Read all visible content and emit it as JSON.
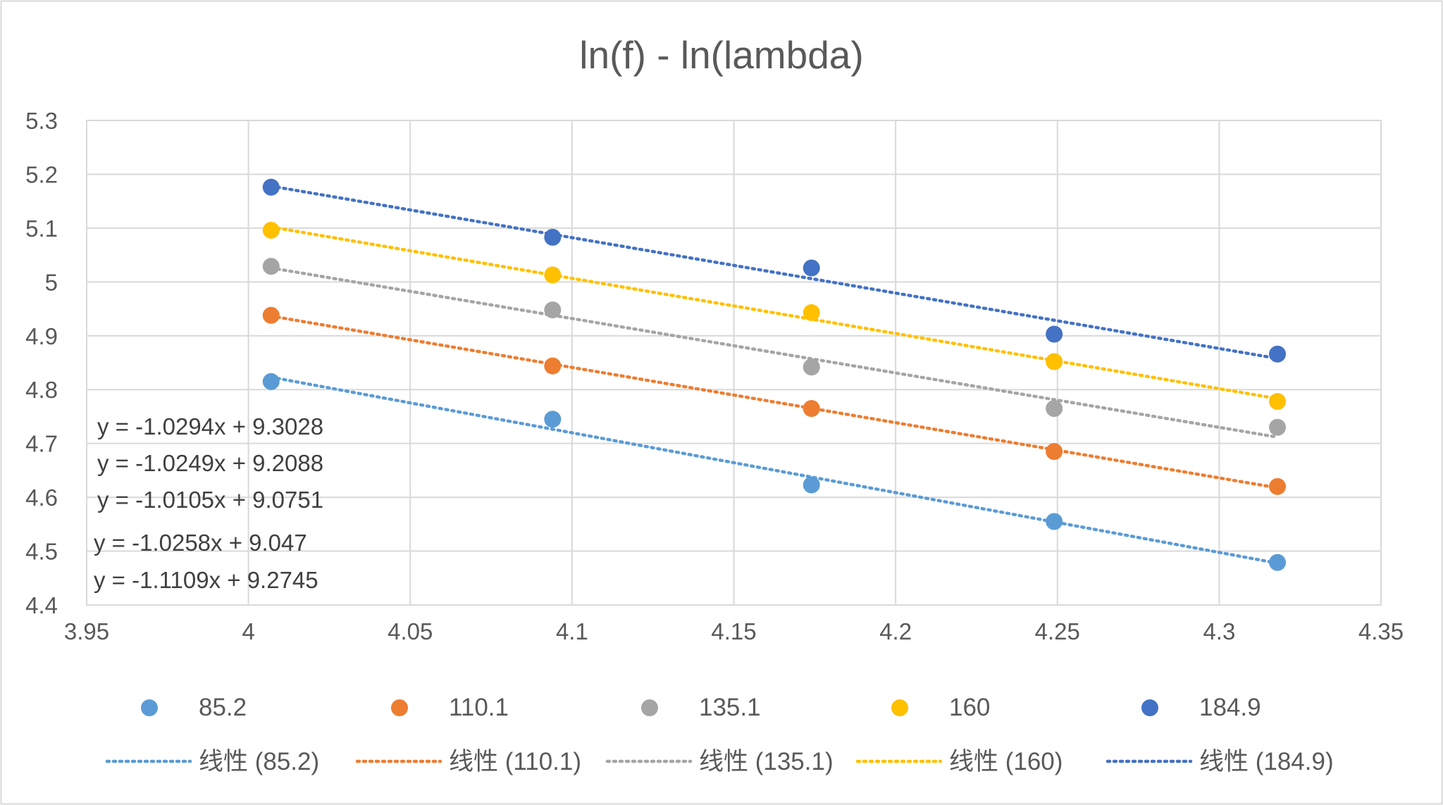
{
  "chart_data": {
    "type": "scatter",
    "title": "ln(f) - ln(lambda)",
    "xlabel": "",
    "ylabel": "",
    "xlim": [
      3.95,
      4.35
    ],
    "ylim": [
      4.4,
      5.3
    ],
    "x_ticks": [
      3.95,
      4,
      4.05,
      4.1,
      4.15,
      4.2,
      4.25,
      4.3,
      4.35
    ],
    "x_tick_labels": [
      "3.95",
      "4",
      "4.05",
      "4.1",
      "4.15",
      "4.2",
      "4.25",
      "4.3",
      "4.35"
    ],
    "y_ticks": [
      4.4,
      4.5,
      4.6,
      4.7,
      4.8,
      4.9,
      5,
      5.1,
      5.2,
      5.3
    ],
    "y_tick_labels": [
      "4.4",
      "4.5",
      "4.6",
      "4.7",
      "4.8",
      "4.9",
      "5",
      "5.1",
      "5.2",
      "5.3"
    ],
    "grid": true,
    "legend_position": "bottom",
    "x": [
      4.007,
      4.094,
      4.174,
      4.249,
      4.318
    ],
    "series": [
      {
        "name": "85.2",
        "color": "#5B9BD5",
        "values": [
          4.815,
          4.745,
          4.623,
          4.555,
          4.479
        ]
      },
      {
        "name": "110.1",
        "color": "#ED7D31",
        "values": [
          4.938,
          4.844,
          4.765,
          4.685,
          4.62
        ]
      },
      {
        "name": "135.1",
        "color": "#A5A5A5",
        "values": [
          5.029,
          4.948,
          4.842,
          4.765,
          4.73
        ]
      },
      {
        "name": "160",
        "color": "#FFC000",
        "values": [
          5.096,
          5.013,
          4.943,
          4.852,
          4.778
        ]
      },
      {
        "name": "184.9",
        "color": "#4472C4",
        "values": [
          5.176,
          5.083,
          5.026,
          4.903,
          4.866
        ]
      }
    ],
    "trendlines": [
      {
        "label": "线性 (85.2)",
        "color": "#5B9BD5",
        "slope": -1.1109,
        "intercept": 9.2745
      },
      {
        "label": "线性 (110.1)",
        "color": "#ED7D31",
        "slope": -1.0258,
        "intercept": 9.047
      },
      {
        "label": "线性 (135.1)",
        "color": "#A5A5A5",
        "slope": -1.0105,
        "intercept": 9.0751
      },
      {
        "label": "线性 (160)",
        "color": "#FFC000",
        "slope": -1.0249,
        "intercept": 9.2088
      },
      {
        "label": "线性 (184.9)",
        "color": "#4472C4",
        "slope": -1.0294,
        "intercept": 9.3028
      }
    ],
    "equations": [
      "y = -1.0294x + 9.3028",
      "y = -1.0249x + 9.2088",
      "y = -1.0105x + 9.0751",
      "y = -1.0258x + 9.047",
      "y = -1.1109x + 9.2745"
    ]
  }
}
